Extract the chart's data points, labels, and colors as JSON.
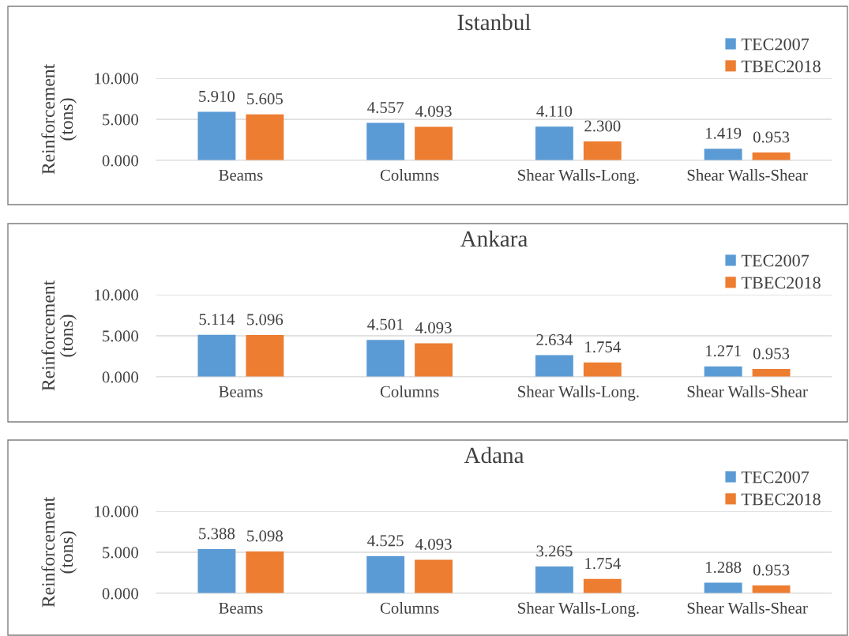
{
  "chart_data": [
    {
      "type": "bar",
      "title": "Istanbul",
      "ylabel": "Reinforcement\n(tons)",
      "categories": [
        "Beams",
        "Columns",
        "Shear Walls-Long.",
        "Shear Walls-Shear"
      ],
      "series": [
        {
          "name": "TEC2007",
          "color": "#5b9bd5",
          "values": [
            5.91,
            4.557,
            4.11,
            1.419
          ],
          "value_labels": [
            "5.910",
            "4.557",
            "4.110",
            "1.419"
          ]
        },
        {
          "name": "TBEC2018",
          "color": "#ed7d31",
          "values": [
            5.605,
            4.093,
            2.3,
            0.953
          ],
          "value_labels": [
            "5.605",
            "4.093",
            "2.300",
            "0.953"
          ]
        }
      ],
      "ylim": [
        0,
        10
      ],
      "yticks": [
        {
          "value": 0,
          "label": "0.000"
        },
        {
          "value": 5,
          "label": "5.000"
        },
        {
          "value": 10,
          "label": "10.000"
        }
      ],
      "grid": "y",
      "legend": "top right"
    },
    {
      "type": "bar",
      "title": "Ankara",
      "ylabel": "Reinforcement\n(tons)",
      "categories": [
        "Beams",
        "Columns",
        "Shear Walls-Long.",
        "Shear Walls-Shear"
      ],
      "series": [
        {
          "name": "TEC2007",
          "color": "#5b9bd5",
          "values": [
            5.114,
            4.501,
            2.634,
            1.271
          ]
        },
        {
          "name": "TBEC2018",
          "color": "#ed7d31",
          "values": [
            5.096,
            4.093,
            1.754,
            0.953
          ]
        }
      ],
      "ylim": [
        0,
        10
      ],
      "yticks": [
        {
          "value": 0,
          "label": "0.000"
        },
        {
          "value": 5,
          "label": "5.000"
        },
        {
          "value": 10,
          "label": "10.000"
        }
      ],
      "data_labels": true,
      "grid": "y",
      "legend": "top right"
    },
    {
      "type": "bar",
      "title": "Adana",
      "ylabel": "Reinforcement\n(tons)",
      "categories": [
        "Beams",
        "Columns",
        "Shear Walls-Long.",
        "Shear Walls-Shear"
      ],
      "series": [
        {
          "name": "TEC2007",
          "color": "#5b9bd5",
          "values": [
            5.388,
            4.525,
            3.265,
            1.288
          ]
        },
        {
          "name": "TBEC2018",
          "color": "#ed7d31",
          "values": [
            5.098,
            4.093,
            1.754,
            0.953
          ]
        }
      ],
      "ylim": [
        0,
        10
      ],
      "yticks": [
        {
          "value": 0,
          "label": "0.000"
        },
        {
          "value": 5,
          "label": "5.000"
        },
        {
          "value": 10,
          "label": "10.000"
        }
      ],
      "data_labels": true,
      "grid": "y",
      "legend": "top right"
    }
  ]
}
